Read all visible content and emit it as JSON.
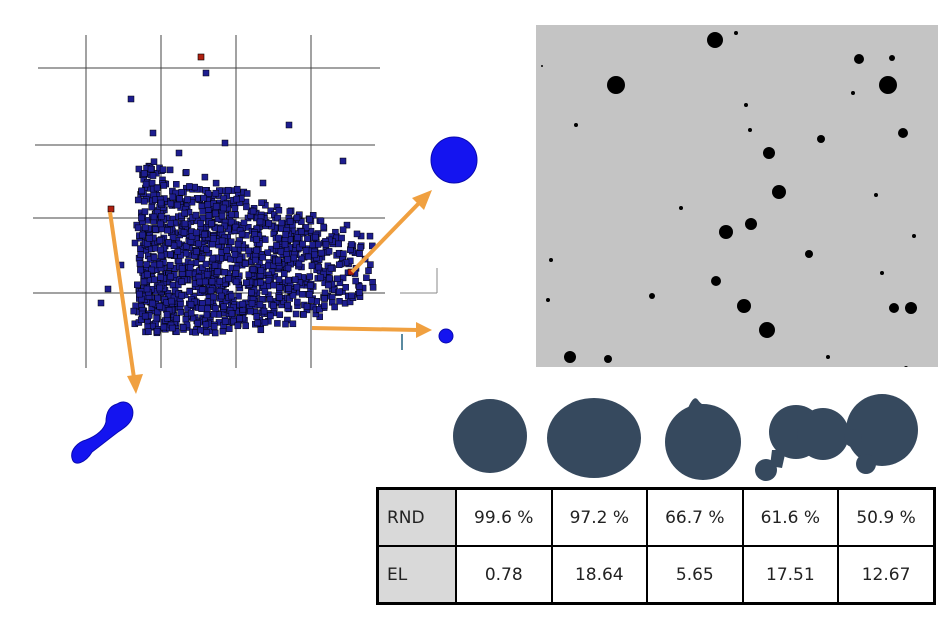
{
  "scatter": {
    "point_color": "#1d1d8f",
    "highlight_color": "#b02010",
    "arrow_color": "#f0a040",
    "blob_color": "#1414f0"
  },
  "micrograph": {
    "background": "#c4c4c4",
    "particle_color": "#000000"
  },
  "shapes": {
    "color": "#36495e",
    "items": [
      "round-blob",
      "elongated-blob",
      "tipped-blob",
      "satellite-blob",
      "double-satellite-blob"
    ]
  },
  "table": {
    "rows": [
      {
        "label": "RND",
        "values": [
          "99.6 %",
          "97.2 %",
          "66.7 %",
          "61.6 %",
          "50.9 %"
        ]
      },
      {
        "label": "EL",
        "values": [
          "0.78",
          "18.64",
          "5.65",
          "17.51",
          "12.67"
        ]
      }
    ]
  }
}
